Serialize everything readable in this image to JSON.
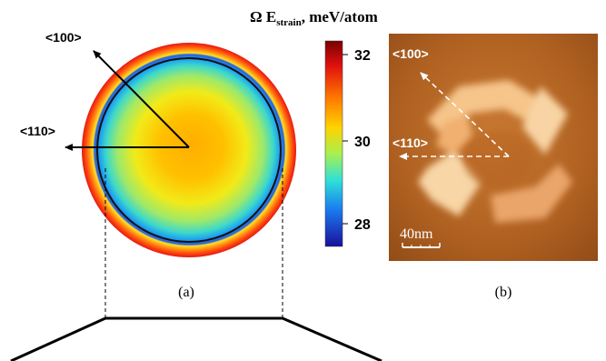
{
  "colorbar": {
    "title_symbol": "Ω E",
    "title_subscript": "strain",
    "title_units": ", meV/atom",
    "ticks": [
      "32",
      "30",
      "28"
    ]
  },
  "panel_a": {
    "direction_labels": [
      "<100>",
      "<110>"
    ],
    "caption": "(a)"
  },
  "panel_b": {
    "direction_labels": [
      "<100>",
      "<110>"
    ],
    "scale_bar": "40nm",
    "caption": "(b)"
  }
}
